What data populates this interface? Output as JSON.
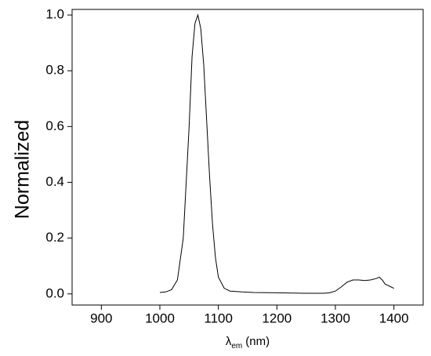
{
  "chart_data": {
    "type": "line",
    "ylabel": "Normalized",
    "xlabel": {
      "symbol": "λ",
      "subscript": "em",
      "unit": "(nm)"
    },
    "xlim": [
      850,
      1450
    ],
    "xticks": [
      900,
      1000,
      1100,
      1200,
      1300,
      1400
    ],
    "ylim": [
      -0.04,
      1.02
    ],
    "yticks": [
      {
        "value": 0,
        "label": "0.0"
      },
      0.2,
      0.4,
      0.6,
      0.8,
      {
        "value": 1,
        "label": "1.0"
      }
    ],
    "x": [
      1000,
      1010,
      1020,
      1030,
      1040,
      1050,
      1055,
      1060,
      1065,
      1070,
      1075,
      1080,
      1085,
      1090,
      1095,
      1100,
      1110,
      1120,
      1140,
      1160,
      1200,
      1250,
      1280,
      1290,
      1300,
      1310,
      1320,
      1330,
      1340,
      1350,
      1360,
      1370,
      1375,
      1380,
      1385,
      1390,
      1395,
      1400
    ],
    "series": [
      {
        "color": "#000000",
        "values": [
          0.005,
          0.007,
          0.015,
          0.05,
          0.2,
          0.6,
          0.85,
          0.97,
          1.0,
          0.95,
          0.82,
          0.62,
          0.42,
          0.25,
          0.13,
          0.06,
          0.02,
          0.01,
          0.007,
          0.005,
          0.004,
          0.002,
          0.002,
          0.004,
          0.01,
          0.025,
          0.042,
          0.05,
          0.05,
          0.048,
          0.05,
          0.055,
          0.06,
          0.05,
          0.035,
          0.03,
          0.025,
          0.02
        ]
      }
    ]
  }
}
